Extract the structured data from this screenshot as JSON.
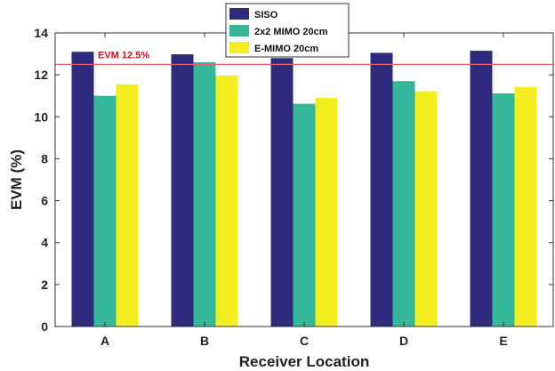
{
  "chart_data": {
    "type": "bar",
    "categories": [
      "A",
      "B",
      "C",
      "D",
      "E"
    ],
    "series": [
      {
        "name": "SISO",
        "values": [
          13.1,
          12.98,
          12.8,
          13.05,
          13.15
        ],
        "color": "#2e2a7d"
      },
      {
        "name": "2x2 MIMO 20cm",
        "values": [
          11.0,
          12.6,
          10.62,
          11.7,
          11.12
        ],
        "color": "#35b79a"
      },
      {
        "name": "E-MIMO 20cm",
        "values": [
          11.55,
          11.97,
          10.9,
          11.22,
          11.42
        ],
        "color": "#f5ee1e"
      }
    ],
    "xlabel": "Receiver Location",
    "ylabel": "EVM (%)",
    "ylim": [
      0,
      14
    ],
    "yticks": [
      0,
      2,
      4,
      6,
      8,
      10,
      12,
      14
    ],
    "grid": false,
    "legend_position": "top-center",
    "reference_line": {
      "value": 12.5,
      "label": "EVM 12.5%",
      "color": "#e8606a",
      "label_color": "#e01020"
    }
  }
}
